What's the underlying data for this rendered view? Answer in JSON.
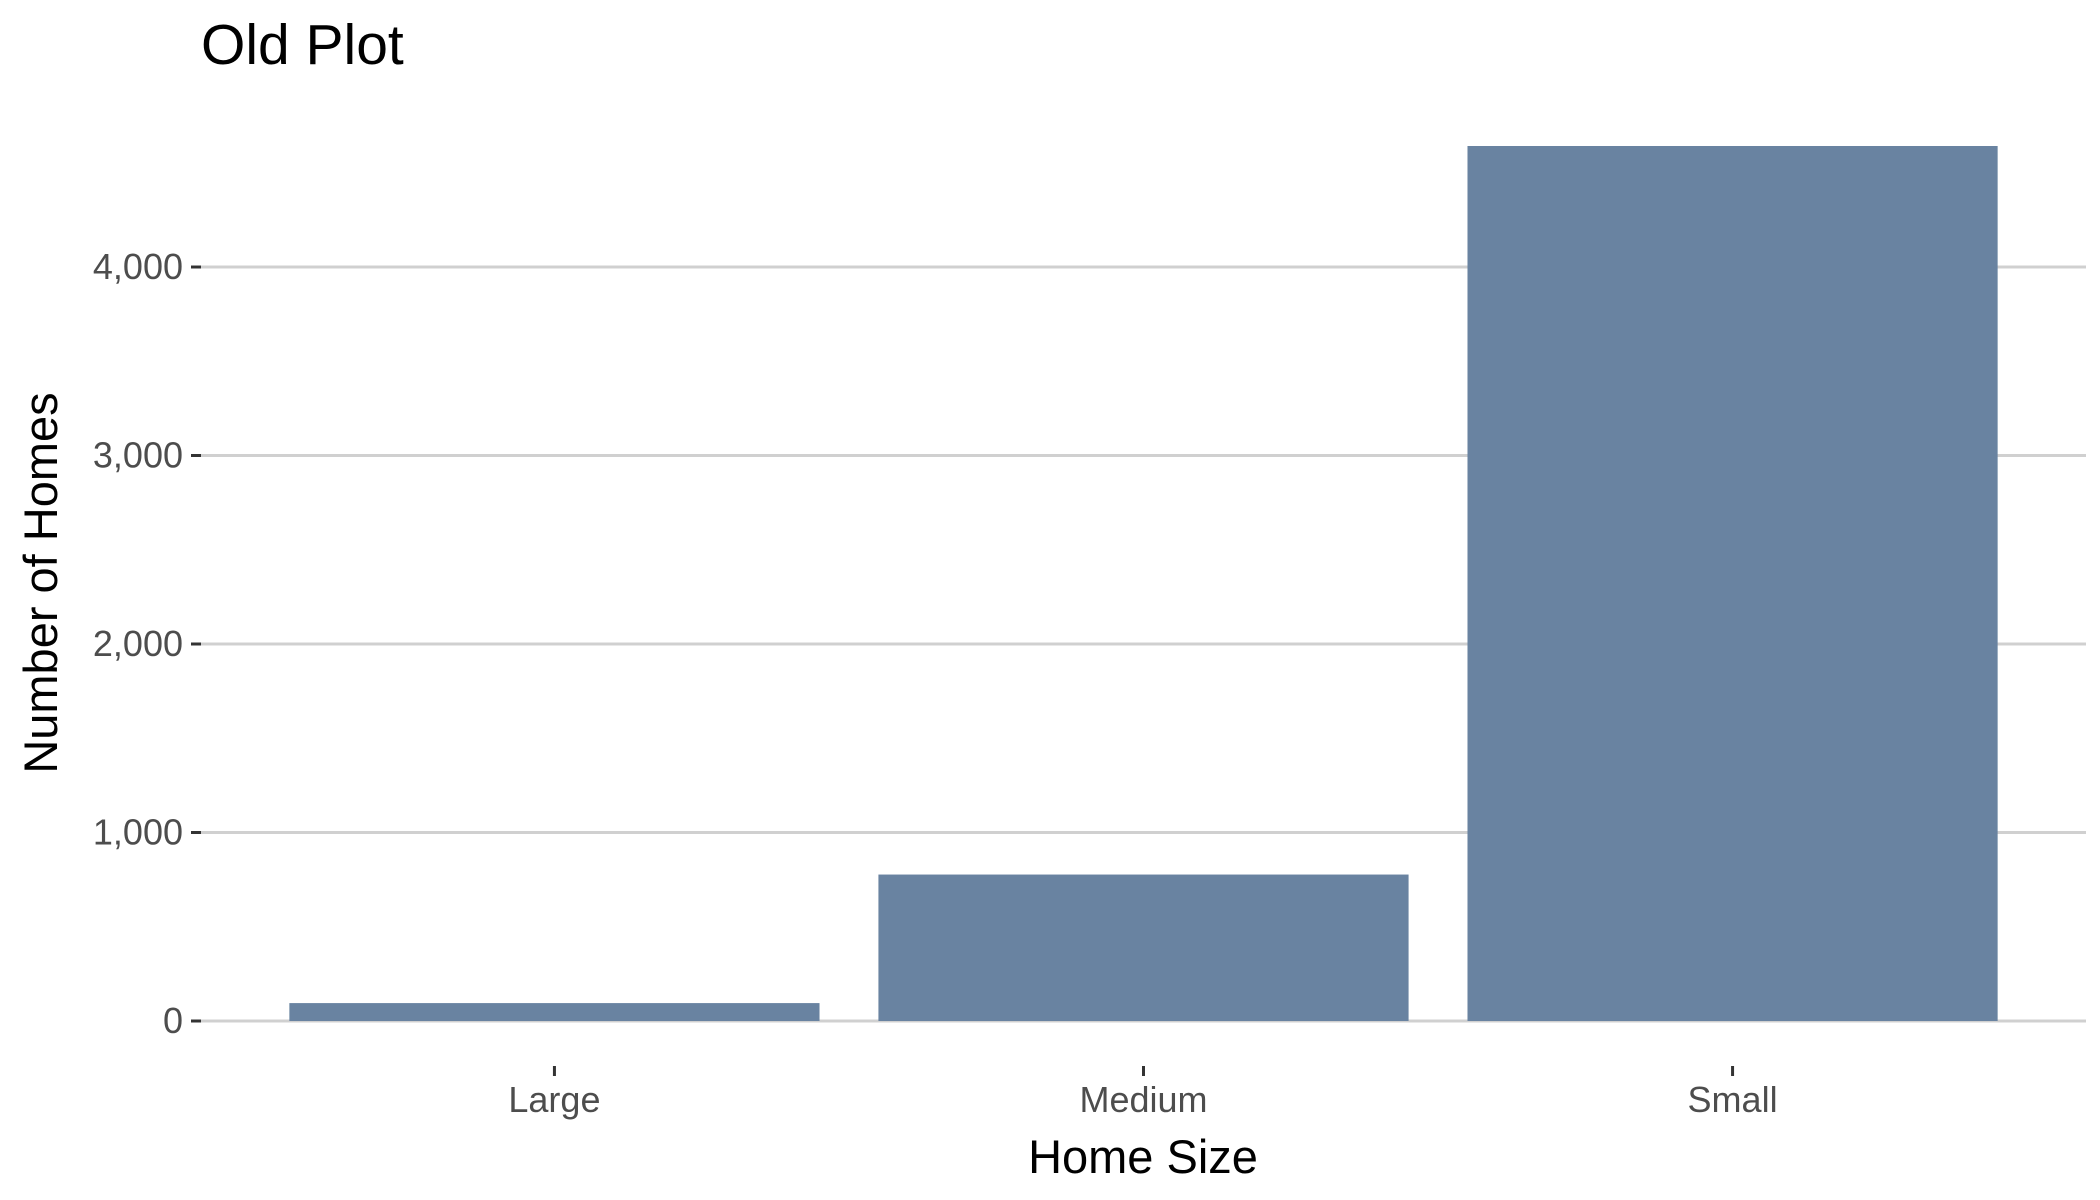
{
  "chart_data": {
    "type": "bar",
    "title": "Old Plot",
    "xlabel": "Home Size",
    "ylabel": "Number of Homes",
    "categories": [
      "Large",
      "Medium",
      "Small"
    ],
    "values": [
      95,
      777,
      4642
    ],
    "ylim": [
      0,
      4642
    ],
    "yticks": [
      0,
      1000,
      2000,
      3000,
      4000
    ],
    "ytick_labels": [
      "0",
      "1,000",
      "2,000",
      "3,000",
      "4,000"
    ],
    "grid": "horizontal major",
    "legend": "none",
    "bar_color": "#6983a1"
  }
}
